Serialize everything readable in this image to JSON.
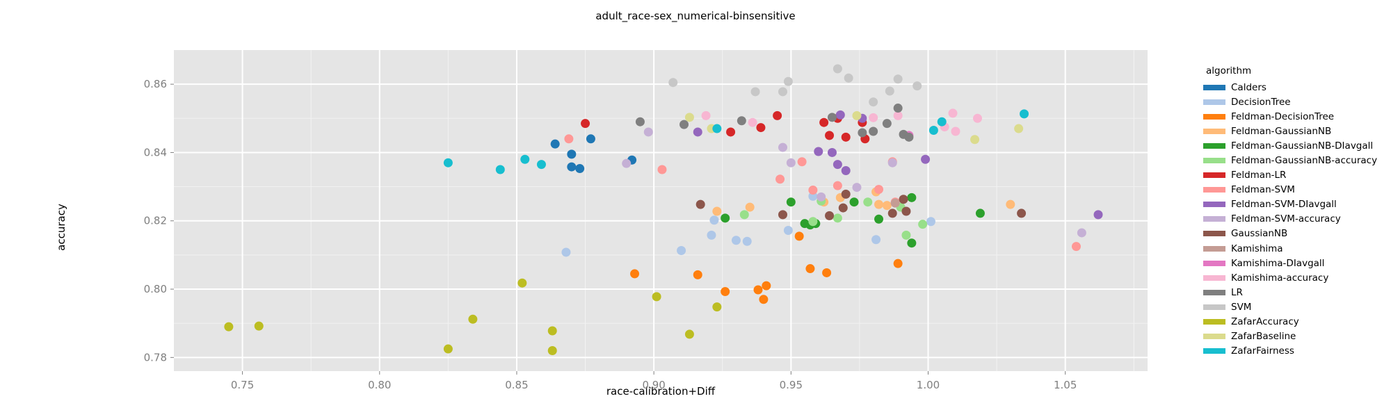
{
  "chart_data": {
    "type": "scatter",
    "title": "adult_race-sex_numerical-binsensitive",
    "xlabel": "race-calibration+Diff",
    "ylabel": "accuracy",
    "xlim": [
      0.725,
      1.08
    ],
    "ylim": [
      0.776,
      0.87
    ],
    "x_ticks": [
      0.75,
      0.8,
      0.85,
      0.9,
      0.95,
      1.0,
      1.05
    ],
    "x_tick_labels": [
      "0.75",
      "0.80",
      "0.85",
      "0.90",
      "0.95",
      "1.00",
      "1.05"
    ],
    "y_ticks": [
      0.78,
      0.8,
      0.82,
      0.84,
      0.86
    ],
    "y_tick_labels": [
      "0.78",
      "0.80",
      "0.82",
      "0.84",
      "0.86"
    ],
    "grid": true,
    "legend_position": "right",
    "legend_title": "algorithm",
    "series": [
      {
        "name": "Calders",
        "color": "#1f77b4",
        "points": [
          [
            0.864,
            0.8425
          ],
          [
            0.87,
            0.8395
          ],
          [
            0.87,
            0.8358
          ],
          [
            0.873,
            0.8353
          ],
          [
            0.877,
            0.844
          ],
          [
            0.892,
            0.8378
          ]
        ]
      },
      {
        "name": "DecisionTree",
        "color": "#aec7e8",
        "points": [
          [
            0.868,
            0.8108
          ],
          [
            0.91,
            0.8113
          ],
          [
            0.921,
            0.8158
          ],
          [
            0.922,
            0.8202
          ],
          [
            0.93,
            0.8143
          ],
          [
            0.934,
            0.814
          ],
          [
            0.949,
            0.8172
          ],
          [
            0.958,
            0.8272
          ],
          [
            0.981,
            0.8145
          ],
          [
            1.001,
            0.8198
          ]
        ]
      },
      {
        "name": "Feldman-DecisionTree",
        "color": "#ff7f0e",
        "points": [
          [
            0.893,
            0.8045
          ],
          [
            0.916,
            0.8042
          ],
          [
            0.926,
            0.7993
          ],
          [
            0.938,
            0.7998
          ],
          [
            0.94,
            0.797
          ],
          [
            0.941,
            0.801
          ],
          [
            0.953,
            0.8155
          ],
          [
            0.957,
            0.806
          ],
          [
            0.963,
            0.8048
          ],
          [
            0.989,
            0.8075
          ]
        ]
      },
      {
        "name": "Feldman-GaussianNB",
        "color": "#ffbb78",
        "points": [
          [
            0.923,
            0.8228
          ],
          [
            0.935,
            0.824
          ],
          [
            0.962,
            0.8255
          ],
          [
            0.968,
            0.8268
          ],
          [
            0.981,
            0.8285
          ],
          [
            0.982,
            0.8248
          ],
          [
            0.985,
            0.8245
          ],
          [
            1.03,
            0.8248
          ]
        ]
      },
      {
        "name": "Feldman-GaussianNB-DIavgall",
        "color": "#2ca02c",
        "points": [
          [
            0.926,
            0.8208
          ],
          [
            0.95,
            0.8255
          ],
          [
            0.955,
            0.8192
          ],
          [
            0.957,
            0.8188
          ],
          [
            0.959,
            0.8192
          ],
          [
            0.973,
            0.8255
          ],
          [
            0.982,
            0.8205
          ],
          [
            0.994,
            0.8268
          ],
          [
            0.994,
            0.8135
          ],
          [
            1.019,
            0.8222
          ]
        ]
      },
      {
        "name": "Feldman-GaussianNB-accuracy",
        "color": "#98df8a",
        "points": [
          [
            0.933,
            0.8218
          ],
          [
            0.958,
            0.8198
          ],
          [
            0.961,
            0.8258
          ],
          [
            0.967,
            0.8208
          ],
          [
            0.978,
            0.8255
          ],
          [
            0.99,
            0.824
          ],
          [
            0.992,
            0.8158
          ],
          [
            0.998,
            0.819
          ]
        ]
      },
      {
        "name": "Feldman-LR",
        "color": "#d62728",
        "points": [
          [
            0.875,
            0.8485
          ],
          [
            0.928,
            0.846
          ],
          [
            0.939,
            0.8473
          ],
          [
            0.945,
            0.8508
          ],
          [
            0.962,
            0.8488
          ],
          [
            0.964,
            0.845
          ],
          [
            0.967,
            0.85
          ],
          [
            0.97,
            0.8445
          ],
          [
            0.976,
            0.8488
          ],
          [
            0.977,
            0.844
          ]
        ]
      },
      {
        "name": "Feldman-SVM",
        "color": "#ff9896",
        "points": [
          [
            0.869,
            0.844
          ],
          [
            0.903,
            0.835
          ],
          [
            0.946,
            0.8322
          ],
          [
            0.954,
            0.8373
          ],
          [
            0.958,
            0.829
          ],
          [
            0.967,
            0.8303
          ],
          [
            0.982,
            0.8292
          ],
          [
            0.987,
            0.8373
          ],
          [
            0.988,
            0.8255
          ],
          [
            1.054,
            0.8125
          ]
        ]
      },
      {
        "name": "Feldman-SVM-DIavgall",
        "color": "#9467bd",
        "points": [
          [
            0.916,
            0.846
          ],
          [
            0.96,
            0.8403
          ],
          [
            0.965,
            0.84
          ],
          [
            0.967,
            0.8365
          ],
          [
            0.968,
            0.851
          ],
          [
            0.97,
            0.8347
          ],
          [
            0.976,
            0.85
          ],
          [
            0.999,
            0.838
          ],
          [
            1.062,
            0.8218
          ]
        ]
      },
      {
        "name": "Feldman-SVM-accuracy",
        "color": "#c5b0d5",
        "points": [
          [
            0.89,
            0.8368
          ],
          [
            0.898,
            0.846
          ],
          [
            0.947,
            0.8415
          ],
          [
            0.95,
            0.837
          ],
          [
            0.961,
            0.827
          ],
          [
            0.974,
            0.8298
          ],
          [
            0.987,
            0.837
          ],
          [
            1.056,
            0.8165
          ]
        ]
      },
      {
        "name": "GaussianNB",
        "color": "#8c564b",
        "points": [
          [
            0.917,
            0.8248
          ],
          [
            0.947,
            0.8218
          ],
          [
            0.964,
            0.8215
          ],
          [
            0.969,
            0.8238
          ],
          [
            0.97,
            0.8278
          ],
          [
            0.987,
            0.8222
          ],
          [
            0.991,
            0.8263
          ],
          [
            0.992,
            0.8228
          ],
          [
            1.034,
            0.8222
          ]
        ]
      },
      {
        "name": "Kamishima",
        "color": "#c49c94",
        "points": [
          [
            0.988,
            0.8252
          ]
        ]
      },
      {
        "name": "Kamishima-DIavgall",
        "color": "#e377c2",
        "points": [
          [
            0.993,
            0.845
          ]
        ]
      },
      {
        "name": "Kamishima-accuracy",
        "color": "#f7b6d2",
        "points": [
          [
            0.919,
            0.8508
          ],
          [
            0.936,
            0.8488
          ],
          [
            0.98,
            0.8502
          ],
          [
            0.989,
            0.8508
          ],
          [
            1.006,
            0.8475
          ],
          [
            1.009,
            0.8515
          ],
          [
            1.01,
            0.8462
          ],
          [
            1.018,
            0.85
          ]
        ]
      },
      {
        "name": "LR",
        "color": "#7f7f7f",
        "points": [
          [
            0.895,
            0.849
          ],
          [
            0.911,
            0.8482
          ],
          [
            0.932,
            0.8493
          ],
          [
            0.965,
            0.8503
          ],
          [
            0.976,
            0.8458
          ],
          [
            0.98,
            0.8462
          ],
          [
            0.985,
            0.8485
          ],
          [
            0.989,
            0.853
          ],
          [
            0.991,
            0.8453
          ],
          [
            0.993,
            0.8445
          ]
        ]
      },
      {
        "name": "SVM",
        "color": "#c7c7c7",
        "points": [
          [
            0.907,
            0.8605
          ],
          [
            0.937,
            0.8578
          ],
          [
            0.947,
            0.8578
          ],
          [
            0.949,
            0.8608
          ],
          [
            0.967,
            0.8645
          ],
          [
            0.971,
            0.8618
          ],
          [
            0.98,
            0.8548
          ],
          [
            0.986,
            0.858
          ],
          [
            0.989,
            0.8615
          ],
          [
            0.996,
            0.8595
          ]
        ]
      },
      {
        "name": "ZafarAccuracy",
        "color": "#bcbd22",
        "points": [
          [
            0.745,
            0.789
          ],
          [
            0.756,
            0.7892
          ],
          [
            0.825,
            0.7825
          ],
          [
            0.834,
            0.7912
          ],
          [
            0.852,
            0.8018
          ],
          [
            0.863,
            0.7878
          ],
          [
            0.863,
            0.782
          ],
          [
            0.901,
            0.7978
          ],
          [
            0.913,
            0.7868
          ],
          [
            0.923,
            0.7948
          ]
        ]
      },
      {
        "name": "ZafarBaseline",
        "color": "#dbdb8d",
        "points": [
          [
            0.913,
            0.8503
          ],
          [
            0.921,
            0.847
          ],
          [
            0.974,
            0.8508
          ],
          [
            1.017,
            0.8438
          ],
          [
            1.033,
            0.847
          ]
        ]
      },
      {
        "name": "ZafarFairness",
        "color": "#17becf",
        "points": [
          [
            0.825,
            0.837
          ],
          [
            0.844,
            0.835
          ],
          [
            0.853,
            0.838
          ],
          [
            0.859,
            0.8365
          ],
          [
            0.923,
            0.847
          ],
          [
            1.002,
            0.8465
          ],
          [
            1.005,
            0.849
          ],
          [
            1.035,
            0.8513
          ]
        ]
      }
    ]
  }
}
